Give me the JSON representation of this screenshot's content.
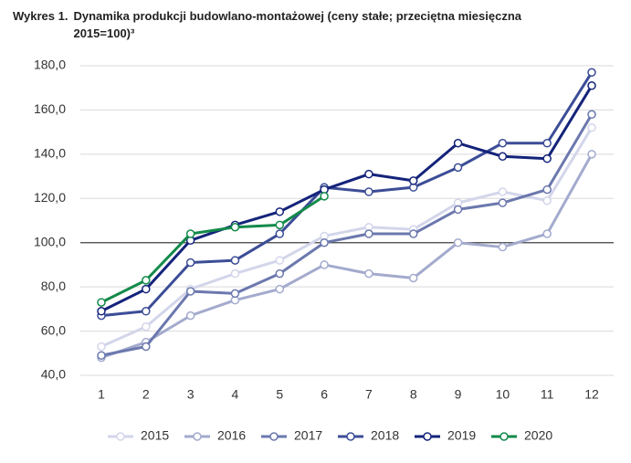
{
  "chart_data": {
    "type": "line",
    "label": "Wykres 1.",
    "title": "Dynamika produkcji budowlano-montażowej (ceny stałe; przeciętna miesięczna 2015=100)³",
    "categories": [
      "1",
      "2",
      "3",
      "4",
      "5",
      "6",
      "7",
      "8",
      "9",
      "10",
      "11",
      "12"
    ],
    "series": [
      {
        "name": "2015",
        "color": "#d3d6ea",
        "values": [
          53,
          62,
          79,
          86,
          92,
          103,
          107,
          106,
          118,
          123,
          119,
          152
        ]
      },
      {
        "name": "2016",
        "color": "#a3aacd",
        "values": [
          48,
          55,
          67,
          74,
          79,
          90,
          86,
          84,
          100,
          98,
          104,
          140
        ]
      },
      {
        "name": "2017",
        "color": "#6b78ae",
        "values": [
          49,
          53,
          78,
          77,
          86,
          100,
          104,
          104,
          115,
          118,
          124,
          158
        ]
      },
      {
        "name": "2018",
        "color": "#3c4d97",
        "values": [
          67,
          69,
          91,
          92,
          104,
          125,
          123,
          125,
          134,
          145,
          145,
          177
        ]
      },
      {
        "name": "2019",
        "color": "#14237a",
        "values": [
          69,
          79,
          101,
          108,
          114,
          124,
          131,
          128,
          145,
          139,
          138,
          171
        ]
      },
      {
        "name": "2020",
        "color": "#138a4a",
        "values": [
          73,
          83,
          104,
          107,
          108,
          121,
          null,
          null,
          null,
          null,
          null,
          null
        ]
      }
    ],
    "ylim": [
      40,
      180
    ],
    "yticks": [
      {
        "value": 40,
        "label": "40,0"
      },
      {
        "value": 60,
        "label": "60,0"
      },
      {
        "value": 80,
        "label": "80,0"
      },
      {
        "value": 100,
        "label": "100,0"
      },
      {
        "value": 120,
        "label": "120,0"
      },
      {
        "value": 140,
        "label": "140,0"
      },
      {
        "value": 160,
        "label": "160,0"
      },
      {
        "value": 180,
        "label": "180,0"
      }
    ],
    "reference_line": 100,
    "grid": true,
    "legend": "bottom"
  }
}
